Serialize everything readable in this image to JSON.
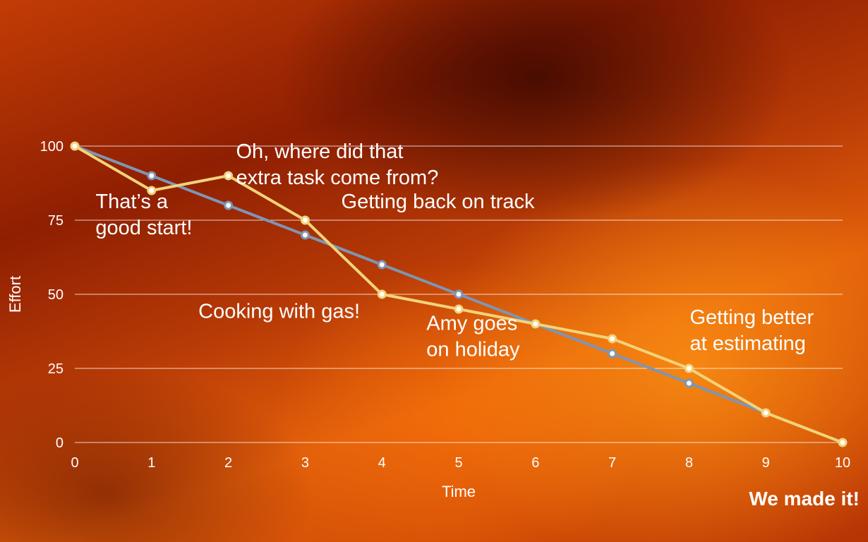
{
  "chart_data": {
    "type": "line",
    "xlabel": "Time",
    "ylabel": "Effort",
    "x": [
      0,
      1,
      2,
      3,
      4,
      5,
      6,
      7,
      8,
      9,
      10
    ],
    "xlim": [
      0,
      10
    ],
    "ylim": [
      0,
      100
    ],
    "yticks": [
      0,
      25,
      50,
      75,
      100
    ],
    "xticks": [
      0,
      1,
      2,
      3,
      4,
      5,
      6,
      7,
      8,
      9,
      10
    ],
    "grid": "horizontal",
    "series": [
      {
        "key": "ideal",
        "color": "#7f95b3",
        "x": [
          0,
          1,
          2,
          3,
          4,
          5,
          6,
          7,
          8,
          9
        ],
        "values": [
          100,
          90,
          80,
          70,
          60,
          50,
          40,
          30,
          20,
          10
        ]
      },
      {
        "key": "actual",
        "color": "#f2d37a",
        "x": [
          0,
          1,
          2,
          3,
          4,
          5,
          6,
          7,
          8,
          9,
          10
        ],
        "values": [
          100,
          85,
          90,
          75,
          50,
          45,
          40,
          35,
          25,
          10,
          0
        ]
      }
    ],
    "annotations": [
      {
        "lines": [
          "Oh, where did that",
          "extra task come from?"
        ],
        "x": 2.1,
        "y": 96
      },
      {
        "lines": [
          "That’s a",
          "good start!"
        ],
        "x": 0.27,
        "y": 79
      },
      {
        "lines": [
          "Getting back on track"
        ],
        "x": 3.47,
        "y": 79
      },
      {
        "lines": [
          "Cooking with gas!"
        ],
        "x": 1.61,
        "y": 42
      },
      {
        "lines": [
          "Amy goes",
          "on holiday"
        ],
        "x": 4.58,
        "y": 38
      },
      {
        "lines": [
          "Getting better",
          "at estimating"
        ],
        "x": 8.01,
        "y": 40
      }
    ],
    "final_note": "We made it!"
  }
}
